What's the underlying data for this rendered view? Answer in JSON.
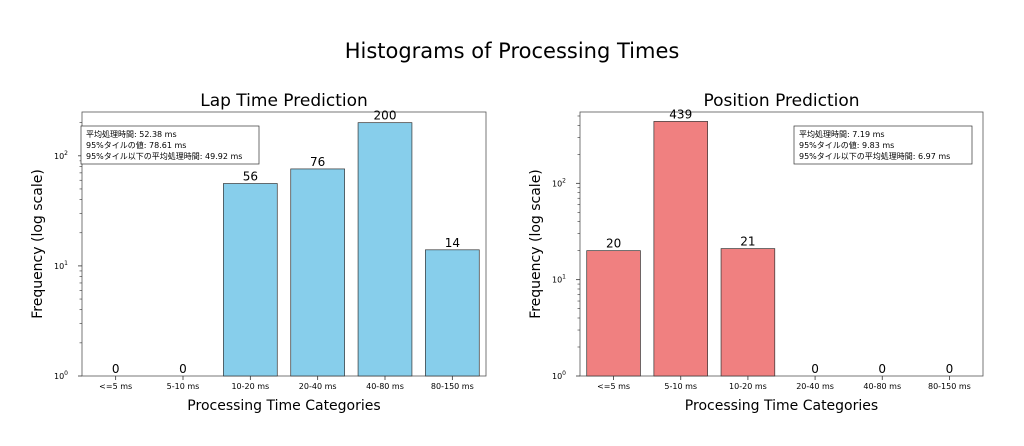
{
  "figure": {
    "title": "Histograms of Processing Times"
  },
  "chart_data": [
    {
      "type": "bar",
      "title": "Lap Time Prediction",
      "xlabel": "Processing Time Categories",
      "ylabel": "Frequency (log scale)",
      "yscale": "log",
      "ylim": [
        1,
        250
      ],
      "y_ticks": [
        {
          "value": 1,
          "base": "10",
          "exp": "0"
        },
        {
          "value": 10,
          "base": "10",
          "exp": "1"
        },
        {
          "value": 100,
          "base": "10",
          "exp": "2"
        }
      ],
      "categories": [
        "<=5 ms",
        "5-10 ms",
        "10-20 ms",
        "20-40 ms",
        "40-80 ms",
        "80-150 ms"
      ],
      "values": [
        0,
        0,
        56,
        76,
        200,
        14
      ],
      "value_labels": [
        "0",
        "0",
        "56",
        "76",
        "200",
        "14"
      ],
      "bar_color": "#87ceeb",
      "legend": "top-left",
      "annotation": [
        "平均処理時間: 52.38 ms",
        "95%タイルの値: 78.61 ms",
        "95%タイル以下の平均処理時間: 49.92 ms"
      ]
    },
    {
      "type": "bar",
      "title": "Position Prediction",
      "xlabel": "Processing Time Categories",
      "ylabel": "Frequency (log scale)",
      "yscale": "log",
      "ylim": [
        1,
        550
      ],
      "y_ticks": [
        {
          "value": 1,
          "base": "10",
          "exp": "0"
        },
        {
          "value": 10,
          "base": "10",
          "exp": "1"
        },
        {
          "value": 100,
          "base": "10",
          "exp": "2"
        }
      ],
      "categories": [
        "<=5 ms",
        "5-10 ms",
        "10-20 ms",
        "20-40 ms",
        "40-80 ms",
        "80-150 ms"
      ],
      "values": [
        20,
        439,
        21,
        0,
        0,
        0
      ],
      "value_labels": [
        "20",
        "439",
        "21",
        "0",
        "0",
        "0"
      ],
      "bar_color": "#f08080",
      "legend": "top-right",
      "annotation": [
        "平均処理時間: 7.19 ms",
        "95%タイルの値: 9.83 ms",
        "95%タイル以下の平均処理時間: 6.97 ms"
      ]
    }
  ]
}
